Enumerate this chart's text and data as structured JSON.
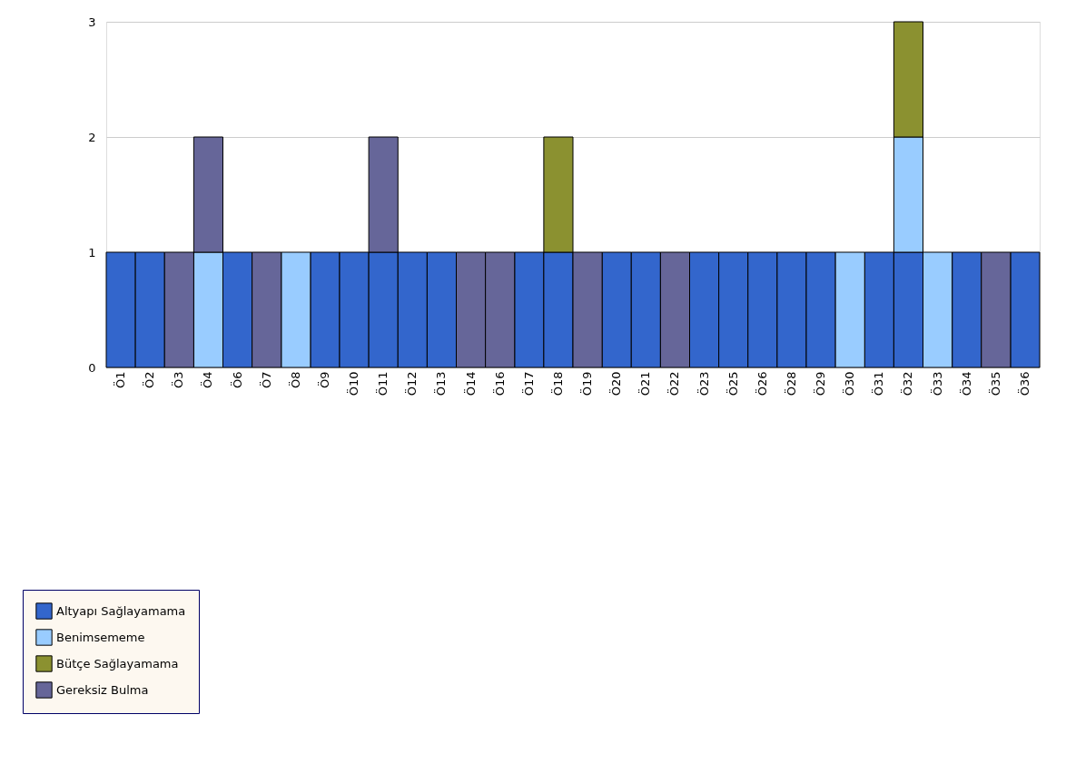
{
  "chart_data": {
    "type": "bar",
    "stacked": true,
    "categories": [
      "Ö1",
      "Ö2",
      "Ö3",
      "Ö4",
      "Ö6",
      "Ö7",
      "Ö8",
      "Ö9",
      "Ö10",
      "Ö11",
      "Ö12",
      "Ö13",
      "Ö14",
      "Ö16",
      "Ö17",
      "Ö18",
      "Ö19",
      "Ö20",
      "Ö21",
      "Ö22",
      "Ö23",
      "Ö25",
      "Ö26",
      "Ö28",
      "Ö29",
      "Ö30",
      "Ö31",
      "Ö32",
      "Ö33",
      "Ö34",
      "Ö35",
      "Ö36"
    ],
    "series": [
      {
        "name": "Altyapı Sağlayamama",
        "color": "#3366cc",
        "values": [
          1,
          1,
          null,
          null,
          1,
          null,
          null,
          1,
          1,
          1,
          1,
          1,
          null,
          null,
          1,
          1,
          null,
          1,
          1,
          null,
          1,
          1,
          1,
          1,
          1,
          null,
          1,
          1,
          null,
          1,
          null,
          1
        ]
      },
      {
        "name": "Benimsememe",
        "color": "#99ccff",
        "values": [
          null,
          null,
          null,
          1,
          null,
          null,
          1,
          null,
          null,
          null,
          null,
          null,
          null,
          null,
          null,
          null,
          null,
          null,
          null,
          null,
          null,
          null,
          null,
          null,
          null,
          1,
          null,
          1,
          1,
          null,
          null,
          null
        ]
      },
      {
        "name": "Bütçe Sağlayamama",
        "color": "#8b9130",
        "values": [
          null,
          null,
          null,
          null,
          null,
          null,
          null,
          null,
          null,
          null,
          null,
          null,
          null,
          null,
          null,
          1,
          null,
          null,
          null,
          null,
          null,
          null,
          null,
          null,
          null,
          null,
          null,
          1,
          null,
          null,
          null,
          null
        ]
      },
      {
        "name": "Gereksiz Bulma",
        "color": "#666699",
        "values": [
          null,
          null,
          1,
          1,
          null,
          1,
          null,
          null,
          null,
          1,
          null,
          null,
          1,
          1,
          null,
          null,
          1,
          null,
          null,
          1,
          null,
          null,
          null,
          null,
          null,
          null,
          null,
          null,
          null,
          null,
          1,
          null
        ]
      }
    ],
    "ylim": [
      0,
      3
    ],
    "yticks": [
      0,
      1,
      2,
      3
    ],
    "grid": "y",
    "legend": "bottom"
  }
}
